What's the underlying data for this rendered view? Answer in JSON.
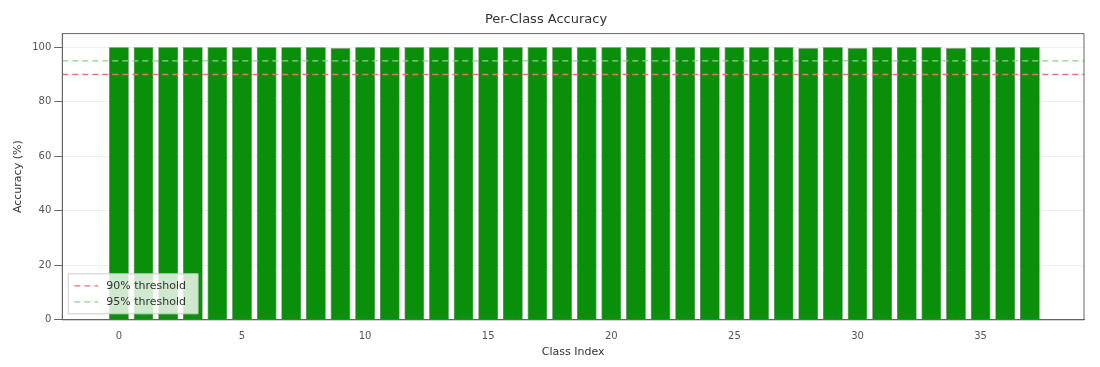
{
  "chart_data": {
    "type": "bar",
    "title": "Per-Class Accuracy",
    "xlabel": "Class Index",
    "ylabel": "Accuracy (%)",
    "x": [
      0,
      1,
      2,
      3,
      4,
      5,
      6,
      7,
      8,
      9,
      10,
      11,
      12,
      13,
      14,
      15,
      16,
      17,
      18,
      19,
      20,
      21,
      22,
      23,
      24,
      25,
      26,
      27,
      28,
      29,
      30,
      31,
      32,
      33,
      34,
      35,
      36,
      37
    ],
    "series": [
      {
        "color": "#0a8f0a",
        "values": [
          100,
          100,
          100,
          100,
          100,
          100,
          100,
          100,
          100,
          99.6,
          100,
          100,
          100,
          100,
          100,
          100,
          100,
          100,
          100,
          100,
          100,
          100,
          100,
          100,
          100,
          100,
          100,
          100,
          99.6,
          100,
          99.6,
          100,
          100,
          100,
          99.6,
          100,
          100,
          100
        ]
      }
    ],
    "xlim": [
      -2.3,
      39.2
    ],
    "xticks": [
      0,
      5,
      10,
      15,
      20,
      25,
      30,
      35
    ],
    "ylim": [
      0,
      105
    ],
    "yticks": [
      0,
      20,
      40,
      60,
      80,
      100
    ],
    "ref_lines": [
      {
        "axis": "y",
        "value": 90,
        "label": "90% threshold",
        "color": "#e8707e",
        "line_style": "dashed"
      },
      {
        "axis": "y",
        "value": 95,
        "label": "95% threshold",
        "color": "#8fd18f",
        "line_style": "dashed"
      }
    ],
    "grid": "y",
    "legend": "bottom left"
  }
}
